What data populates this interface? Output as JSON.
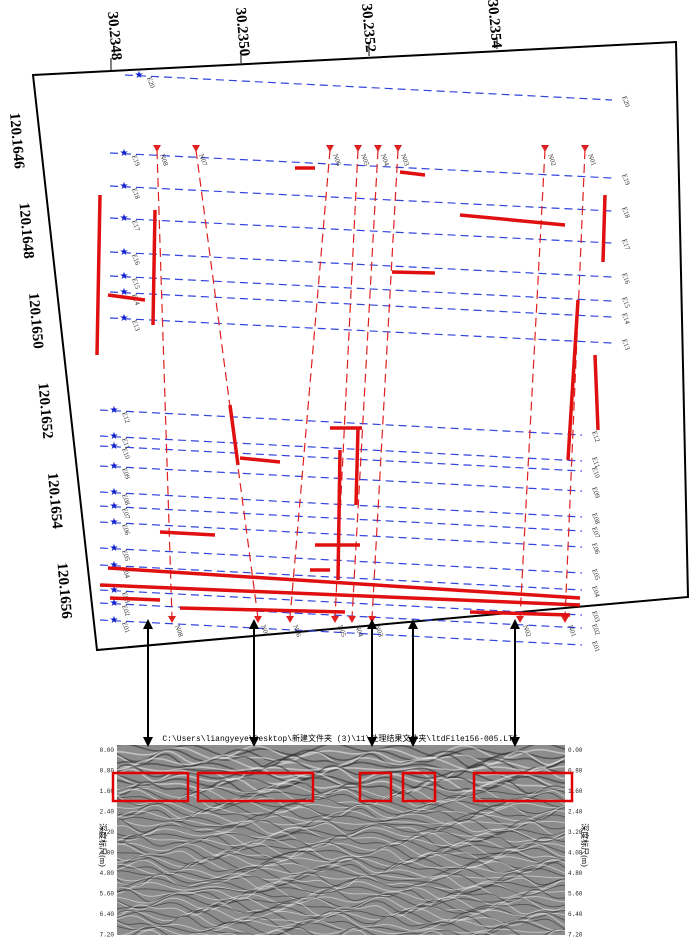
{
  "map": {
    "lat_labels": [
      "30.2348",
      "30.2350",
      "30.2352",
      "30.2354"
    ],
    "lon_labels": [
      "120.1646",
      "120.1648",
      "120.1650",
      "120.1652",
      "120.1654",
      "120.1656"
    ],
    "east_lines": [
      "E01",
      "E02",
      "E03",
      "E04",
      "E05",
      "E06",
      "E07",
      "E08",
      "E09",
      "E10",
      "E11",
      "E12",
      "E13",
      "E14",
      "E15",
      "E16",
      "E17",
      "E18",
      "E19",
      "E20"
    ],
    "north_lines": [
      "N08",
      "N07",
      "N06",
      "N05",
      "N04",
      "N03",
      "N02",
      "N01"
    ]
  },
  "radargram": {
    "title": "C:\\Users\\liangyeye\\Desktop\\新建文件夹 (3)\\11\\处理结果文件夹\\ltdFile156-005.LTE",
    "depth_ticks": [
      "0.00",
      "0.80",
      "1.60",
      "2.40",
      "3.20",
      "4.00",
      "4.80",
      "5.60",
      "6.40",
      "7.20"
    ],
    "axis_label": "深度标尺(m)"
  }
}
